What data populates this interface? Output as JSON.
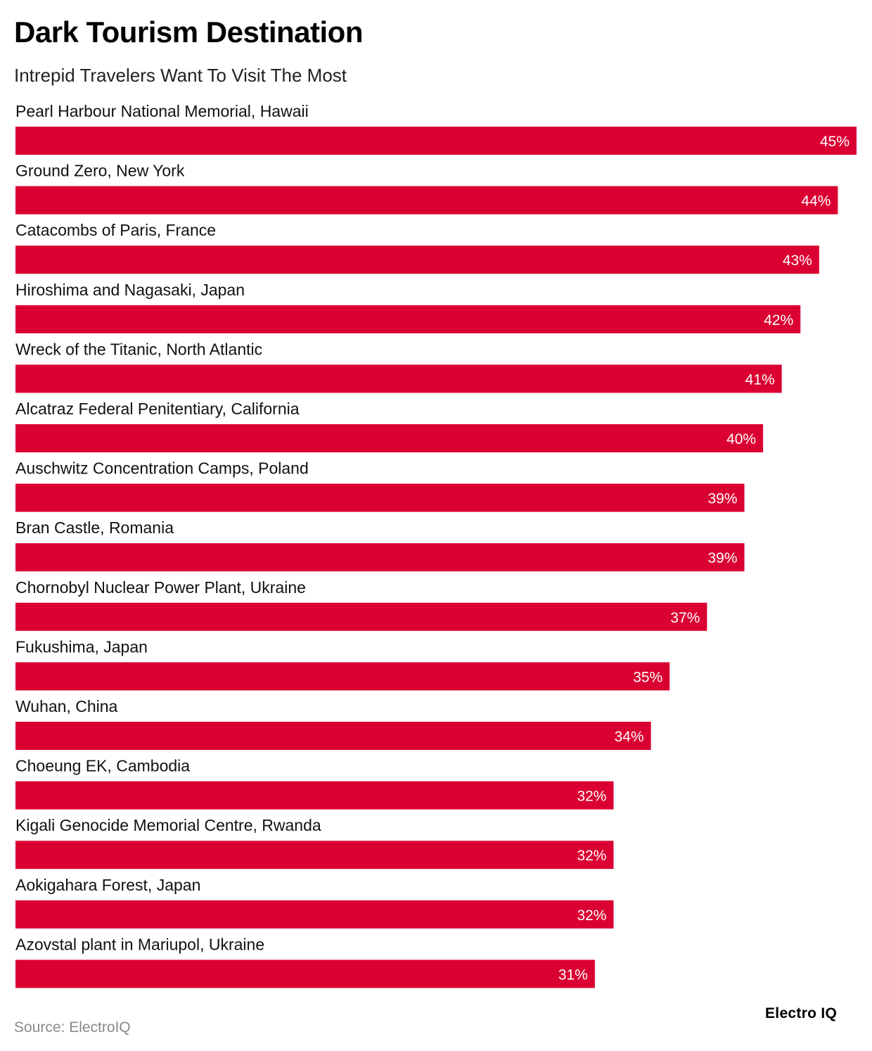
{
  "header": {
    "title": "Dark Tourism Destination",
    "subtitle": "Intrepid Travelers Want To Visit The Most"
  },
  "footer": {
    "source": "Source: ElectroIQ",
    "brand": "Electro IQ"
  },
  "colors": {
    "bar": "#DB0032",
    "value_text": "#ffffff",
    "label_text": "#111111"
  },
  "chart_data": {
    "type": "bar",
    "orientation": "horizontal",
    "title": "Dark Tourism Destination",
    "subtitle": "Intrepid Travelers Want To Visit The Most",
    "xlabel": "",
    "ylabel": "",
    "unit": "%",
    "xlim": [
      0,
      45
    ],
    "grid": false,
    "categories": [
      "Pearl Harbour National Memorial, Hawaii",
      "Ground Zero, New York",
      "Catacombs of Paris, France",
      "Hiroshima and Nagasaki, Japan",
      "Wreck of the Titanic, North Atlantic",
      "Alcatraz Federal Penitentiary, California",
      "Auschwitz Concentration Camps, Poland",
      "Bran Castle, Romania",
      "Chornobyl Nuclear Power Plant, Ukraine",
      "Fukushima, Japan",
      "Wuhan, China",
      "Choeung EK, Cambodia",
      "Kigali Genocide Memorial Centre, Rwanda",
      "Aokigahara Forest, Japan",
      "Azovstal plant in Mariupol, Ukraine"
    ],
    "values": [
      45,
      44,
      43,
      42,
      41,
      40,
      39,
      39,
      37,
      35,
      34,
      32,
      32,
      32,
      31
    ],
    "value_labels": [
      "45%",
      "44%",
      "43%",
      "42%",
      "41%",
      "40%",
      "39%",
      "39%",
      "37%",
      "35%",
      "34%",
      "32%",
      "32%",
      "32%",
      "31%"
    ]
  }
}
